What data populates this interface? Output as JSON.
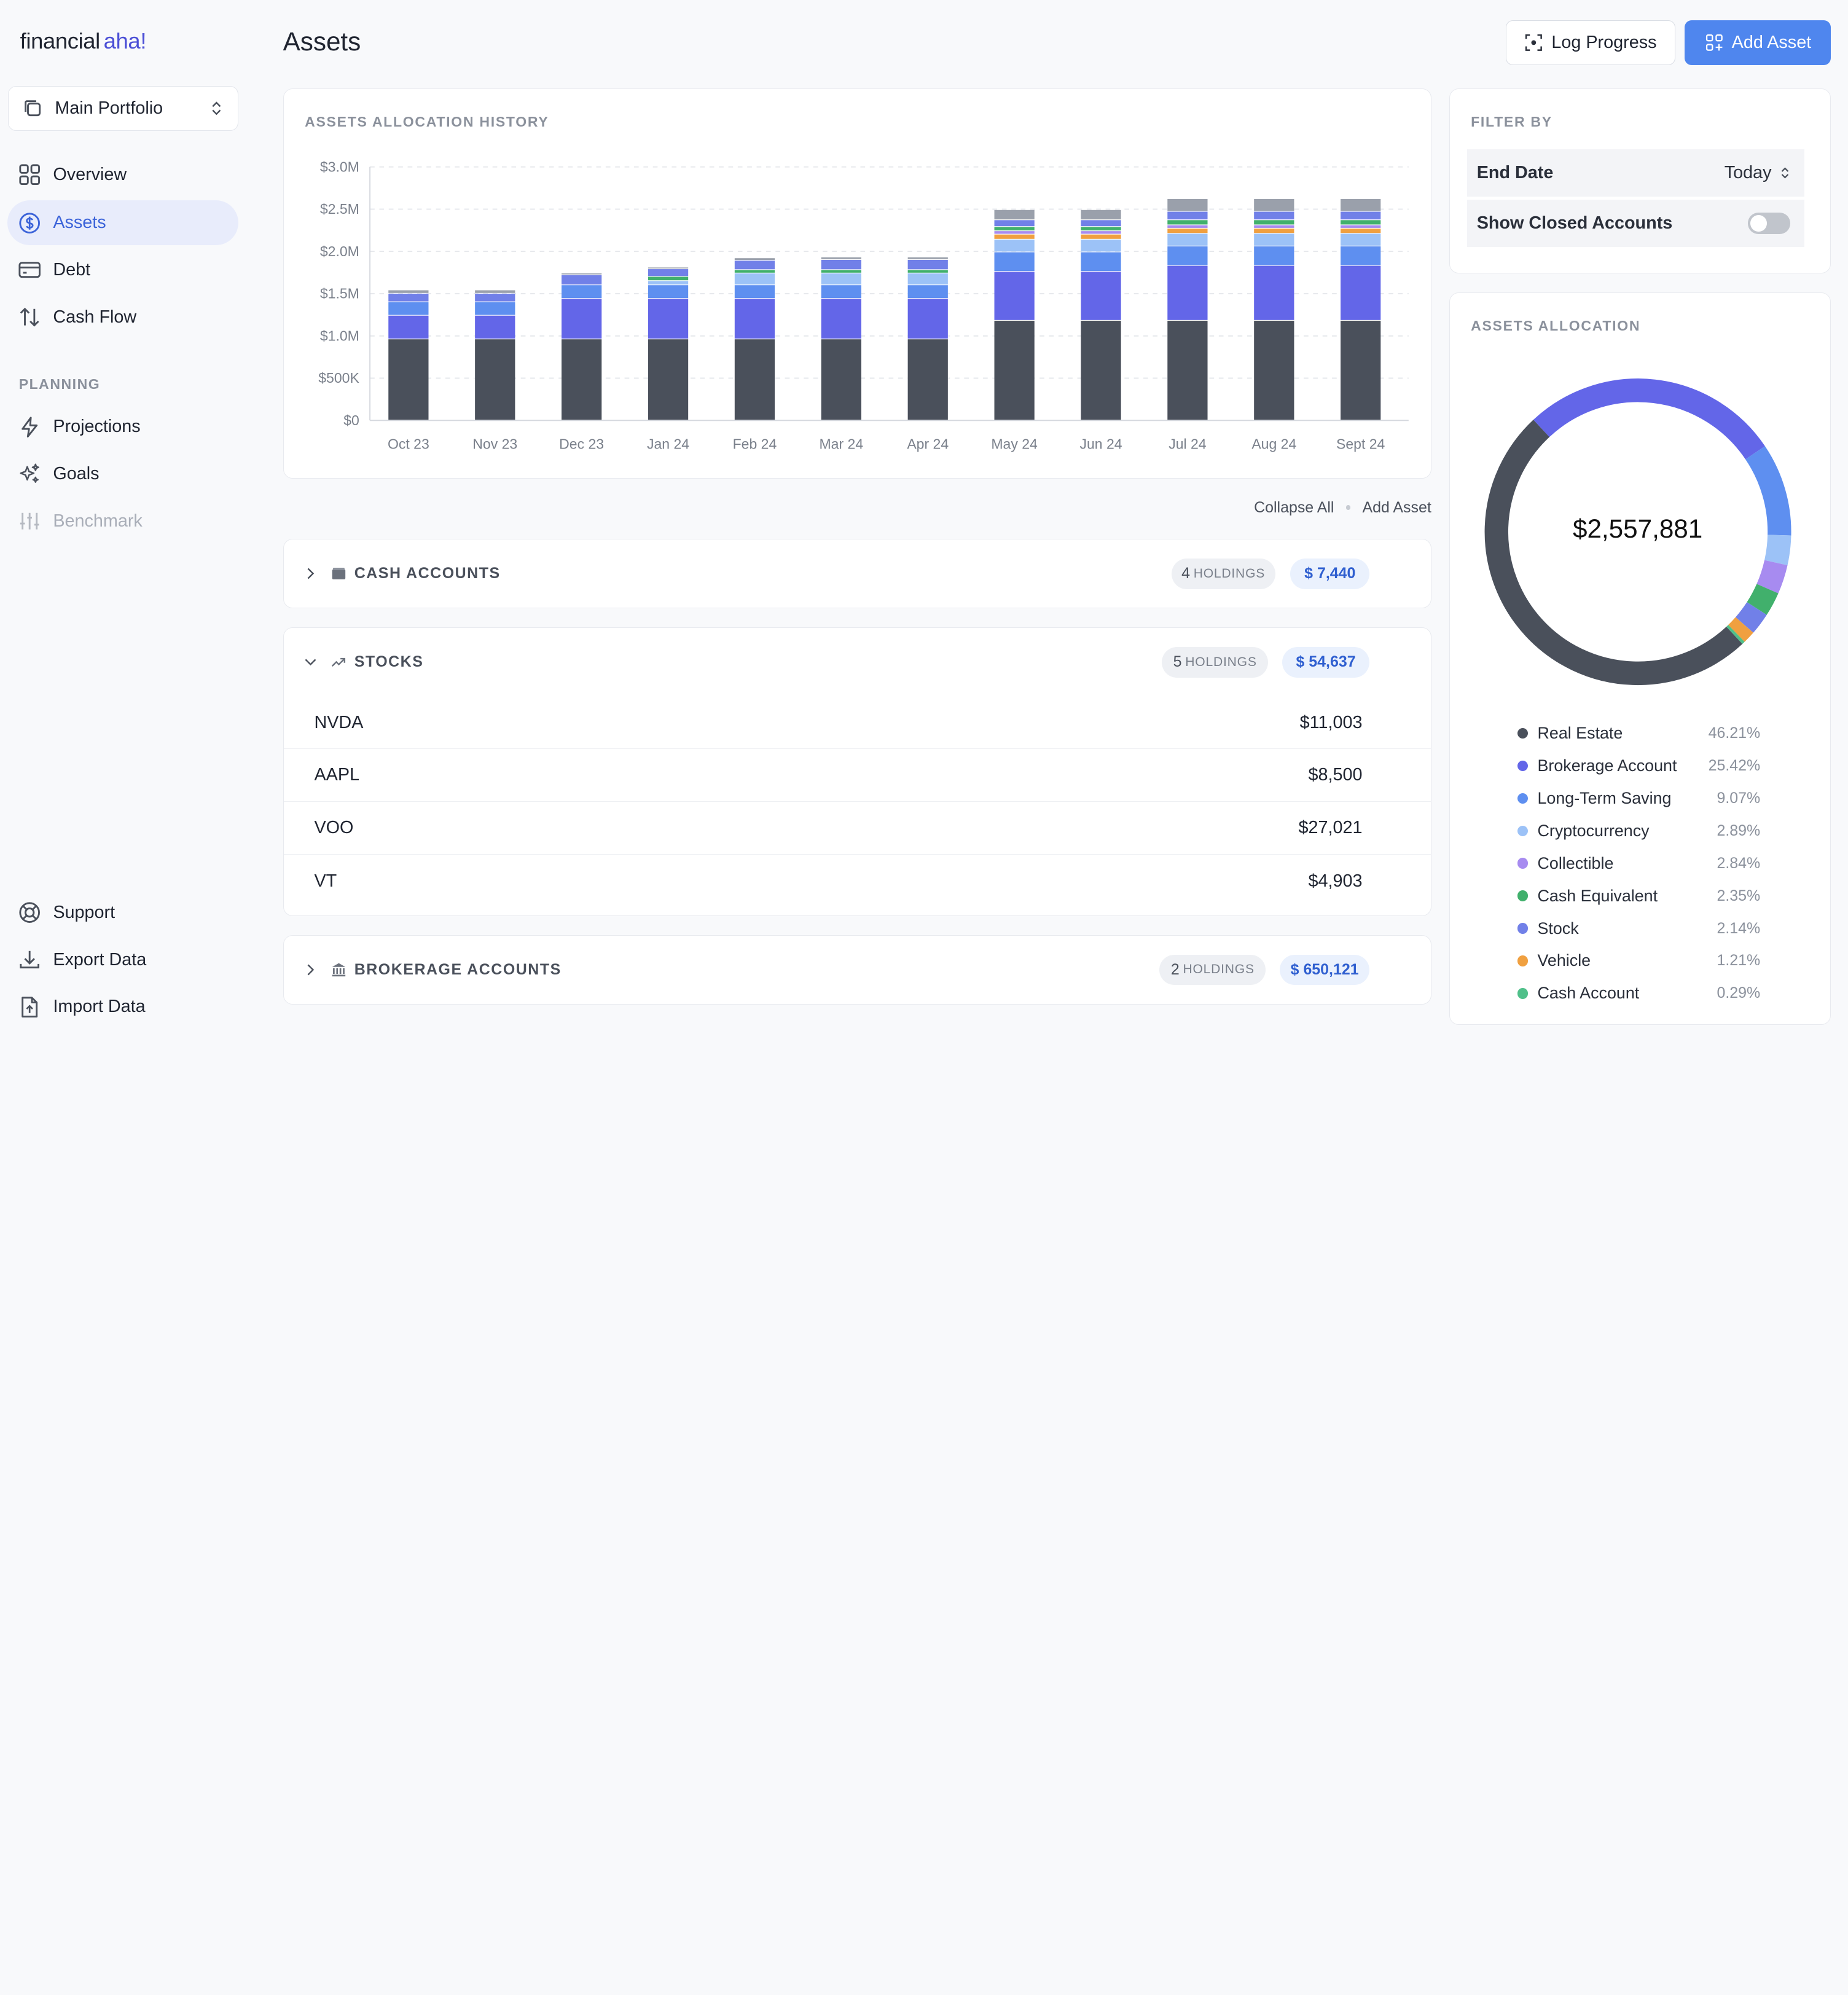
{
  "brand": {
    "part1": "financial",
    "part2": "aha!"
  },
  "portfolio_selector": {
    "label": "Main Portfolio"
  },
  "nav": [
    {
      "label": "Overview",
      "icon": "grid-icon"
    },
    {
      "label": "Assets",
      "icon": "dollar-circle-icon",
      "active": true
    },
    {
      "label": "Debt",
      "icon": "card-icon"
    },
    {
      "label": "Cash Flow",
      "icon": "arrows-updown-icon"
    }
  ],
  "planning": {
    "title": "PLANNING",
    "items": [
      {
        "label": "Projections",
        "icon": "bolt-icon"
      },
      {
        "label": "Goals",
        "icon": "sparkle-icon"
      },
      {
        "label": "Benchmark",
        "icon": "sliders-icon",
        "disabled": true
      }
    ]
  },
  "bottom_nav": [
    {
      "label": "Support",
      "icon": "lifebuoy-icon"
    },
    {
      "label": "Export Data",
      "icon": "download-icon"
    },
    {
      "label": "Import Data",
      "icon": "file-upload-icon"
    }
  ],
  "header": {
    "title": "Assets",
    "log_progress": "Log Progress",
    "add_asset": "Add Asset"
  },
  "chart_data": {
    "type": "bar",
    "stacked": true,
    "title": "ASSETS ALLOCATION HISTORY",
    "categories": [
      "Oct 23",
      "Nov 23",
      "Dec 23",
      "Jan 24",
      "Feb 24",
      "Mar 24",
      "Apr 24",
      "May 24",
      "Jun 24",
      "Jul 24",
      "Aug 24",
      "Sept 24"
    ],
    "ylim": [
      0,
      3000000
    ],
    "yticks": [
      "$0",
      "$500K",
      "$1.0M",
      "$1.5M",
      "$2.0M",
      "$2.5M",
      "$3.0M"
    ],
    "grid": true,
    "series": [
      {
        "color": "#4a505b",
        "values": [
          960000,
          960000,
          960000,
          960000,
          960000,
          960000,
          960000,
          1180000,
          1180000,
          1180000,
          1180000,
          1180000
        ]
      },
      {
        "color": "#6366e8",
        "values": [
          280000,
          280000,
          480000,
          480000,
          480000,
          480000,
          480000,
          580000,
          580000,
          650000,
          650000,
          650000
        ]
      },
      {
        "color": "#5e8ff0",
        "values": [
          160000,
          160000,
          160000,
          160000,
          160000,
          160000,
          160000,
          230000,
          230000,
          230000,
          230000,
          230000
        ]
      },
      {
        "color": "#9cc2f7",
        "values": [
          0,
          0,
          0,
          50000,
          140000,
          140000,
          140000,
          150000,
          150000,
          150000,
          150000,
          150000
        ]
      },
      {
        "color": "#f0a040",
        "values": [
          0,
          0,
          0,
          0,
          0,
          0,
          0,
          60000,
          60000,
          60000,
          60000,
          60000
        ]
      },
      {
        "color": "#a78bf0",
        "values": [
          0,
          0,
          0,
          0,
          0,
          0,
          0,
          40000,
          40000,
          40000,
          40000,
          40000
        ]
      },
      {
        "color": "#41b06c",
        "values": [
          0,
          0,
          0,
          50000,
          40000,
          40000,
          40000,
          50000,
          50000,
          60000,
          60000,
          60000
        ]
      },
      {
        "color": "#7180e8",
        "values": [
          100000,
          100000,
          120000,
          90000,
          110000,
          120000,
          120000,
          80000,
          80000,
          100000,
          100000,
          100000
        ]
      },
      {
        "color": "#9aa0ab",
        "values": [
          40000,
          40000,
          20000,
          20000,
          30000,
          30000,
          30000,
          120000,
          120000,
          150000,
          150000,
          150000
        ]
      }
    ]
  },
  "list_actions": {
    "collapse_all": "Collapse All",
    "add_asset": "Add Asset"
  },
  "groups": [
    {
      "name": "CASH ACCOUNTS",
      "count": "4",
      "holdings_label": "HOLDINGS",
      "amount": "$ 7,440",
      "expanded": false,
      "icon": "wallet-icon"
    },
    {
      "name": "STOCKS",
      "count": "5",
      "holdings_label": "HOLDINGS",
      "amount": "$ 54,637",
      "expanded": true,
      "icon": "trending-up-icon",
      "rows": [
        {
          "ticker": "NVDA",
          "value": "$11,003"
        },
        {
          "ticker": "AAPL",
          "value": "$8,500"
        },
        {
          "ticker": "VOO",
          "value": "$27,021"
        },
        {
          "ticker": "VT",
          "value": "$4,903"
        }
      ]
    },
    {
      "name": "BROKERAGE ACCOUNTS",
      "count": "2",
      "holdings_label": "HOLDINGS",
      "amount": "$ 650,121",
      "expanded": false,
      "icon": "bank-icon"
    }
  ],
  "filter": {
    "title": "FILTER BY",
    "end_date_label": "End Date",
    "end_date_value": "Today",
    "closed_label": "Show Closed Accounts",
    "closed_on": false
  },
  "allocation": {
    "title": "ASSETS ALLOCATION",
    "total": "$2,557,881",
    "items": [
      {
        "label": "Real Estate",
        "pct": "46.21%",
        "value": 46.21,
        "color": "#4a505b"
      },
      {
        "label": "Brokerage Account",
        "pct": "25.42%",
        "value": 25.42,
        "color": "#6366e8"
      },
      {
        "label": "Long-Term Saving",
        "pct": "9.07%",
        "value": 9.07,
        "color": "#5e8ff0"
      },
      {
        "label": "Cryptocurrency",
        "pct": "2.89%",
        "value": 2.89,
        "color": "#9cc2f7"
      },
      {
        "label": "Collectible",
        "pct": "2.84%",
        "value": 2.84,
        "color": "#a78bf0"
      },
      {
        "label": "Cash Equivalent",
        "pct": "2.35%",
        "value": 2.35,
        "color": "#41b06c"
      },
      {
        "label": "Stock",
        "pct": "2.14%",
        "value": 2.14,
        "color": "#7180e8"
      },
      {
        "label": "Vehicle",
        "pct": "1.21%",
        "value": 1.21,
        "color": "#f0a040"
      },
      {
        "label": "Cash Account",
        "pct": "0.29%",
        "value": 0.29,
        "color": "#50c08a"
      }
    ]
  }
}
